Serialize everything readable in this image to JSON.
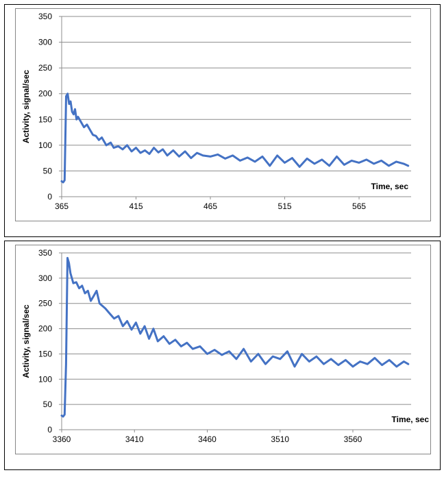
{
  "chart_data": [
    {
      "type": "line",
      "title": "",
      "xlabel": "Time, sec",
      "ylabel": "Activity, signal/sec",
      "xlim": [
        365,
        600
      ],
      "ylim": [
        0,
        350
      ],
      "x_ticks": [
        "365",
        "415",
        "465",
        "515",
        "565"
      ],
      "y_ticks": [
        "0",
        "50",
        "100",
        "150",
        "200",
        "250",
        "300",
        "350"
      ],
      "grid": true,
      "legend": "none",
      "color": "#4472C4",
      "series": [
        {
          "x": [
            365,
            366,
            367,
            368,
            369,
            370,
            371,
            372,
            373,
            374,
            375,
            376,
            378,
            380,
            382,
            384,
            386,
            388,
            390,
            392,
            395,
            398,
            400,
            403,
            406,
            409,
            412,
            415,
            418,
            421,
            424,
            427,
            430,
            433,
            436,
            440,
            444,
            448,
            452,
            456,
            460,
            465,
            470,
            475,
            480,
            485,
            490,
            495,
            500,
            505,
            510,
            515,
            520,
            525,
            530,
            535,
            540,
            545,
            550,
            555,
            560,
            565,
            570,
            575,
            580,
            585,
            590,
            595,
            598
          ],
          "y": [
            30,
            28,
            32,
            195,
            200,
            180,
            185,
            165,
            160,
            170,
            150,
            155,
            145,
            135,
            140,
            130,
            120,
            118,
            110,
            115,
            100,
            105,
            95,
            98,
            92,
            100,
            88,
            95,
            85,
            90,
            83,
            95,
            86,
            92,
            80,
            90,
            78,
            88,
            75,
            85,
            80,
            78,
            82,
            74,
            80,
            70,
            76,
            68,
            78,
            60,
            80,
            66,
            75,
            58,
            74,
            64,
            72,
            60,
            78,
            62,
            70,
            66,
            72,
            64,
            70,
            60,
            68,
            64,
            60
          ]
        }
      ]
    },
    {
      "type": "line",
      "title": "",
      "xlabel": "Time, sec",
      "ylabel": "Activity, signal/sec",
      "xlim": [
        3360,
        3600
      ],
      "ylim": [
        0,
        350
      ],
      "x_ticks": [
        "3360",
        "3410",
        "3460",
        "3510",
        "3560"
      ],
      "y_ticks": [
        "0",
        "50",
        "100",
        "150",
        "200",
        "250",
        "300",
        "350"
      ],
      "grid": true,
      "legend": "none",
      "color": "#4472C4",
      "series": [
        {
          "x": [
            3360,
            3361,
            3362,
            3363,
            3364,
            3365,
            3366,
            3367,
            3368,
            3370,
            3372,
            3374,
            3376,
            3378,
            3380,
            3382,
            3384,
            3386,
            3388,
            3390,
            3393,
            3396,
            3399,
            3402,
            3405,
            3408,
            3411,
            3414,
            3417,
            3420,
            3423,
            3426,
            3430,
            3434,
            3438,
            3442,
            3446,
            3450,
            3455,
            3460,
            3465,
            3470,
            3475,
            3480,
            3485,
            3490,
            3495,
            3500,
            3505,
            3510,
            3515,
            3520,
            3525,
            3530,
            3535,
            3540,
            3545,
            3550,
            3555,
            3560,
            3565,
            3570,
            3575,
            3580,
            3585,
            3590,
            3595,
            3598
          ],
          "y": [
            28,
            26,
            30,
            130,
            340,
            330,
            310,
            300,
            290,
            292,
            280,
            285,
            270,
            275,
            255,
            265,
            275,
            250,
            245,
            240,
            230,
            220,
            225,
            205,
            215,
            198,
            212,
            190,
            205,
            180,
            200,
            175,
            185,
            170,
            178,
            165,
            172,
            160,
            165,
            150,
            158,
            148,
            155,
            140,
            160,
            135,
            150,
            130,
            145,
            140,
            155,
            125,
            150,
            135,
            145,
            130,
            140,
            128,
            138,
            125,
            135,
            130,
            142,
            128,
            138,
            125,
            135,
            130
          ]
        }
      ]
    }
  ]
}
